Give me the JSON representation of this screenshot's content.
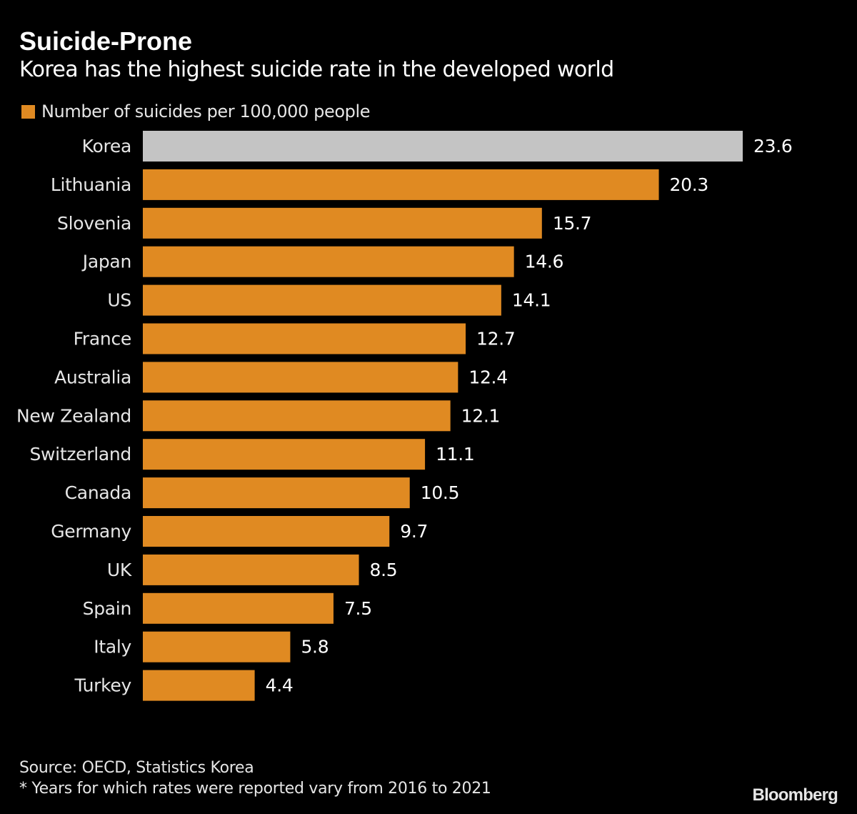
{
  "chart_data": {
    "type": "bar",
    "orientation": "horizontal",
    "title": "Suicide-Prone",
    "subtitle": "Korea has the highest suicide rate in the developed world",
    "legend": "Number of suicides per 100,000 people",
    "legend_position": "top-left",
    "categories": [
      "Korea",
      "Lithuania",
      "Slovenia",
      "Japan",
      "US",
      "France",
      "Australia",
      "New Zealand",
      "Switzerland",
      "Canada",
      "Germany",
      "UK",
      "Spain",
      "Italy",
      "Turkey"
    ],
    "values": [
      23.6,
      20.3,
      15.7,
      14.6,
      14.1,
      12.7,
      12.4,
      12.1,
      11.1,
      10.5,
      9.7,
      8.5,
      7.5,
      5.8,
      4.4
    ],
    "value_labels": [
      "23.6",
      "20.3",
      "15.7",
      "14.6",
      "14.1",
      "12.7",
      "12.4",
      "12.1",
      "11.1",
      "10.5",
      "9.7",
      "8.5",
      "7.5",
      "5.8",
      "4.4"
    ],
    "highlight_category": "Korea",
    "xlim": [
      0,
      23.6
    ],
    "grid": false,
    "xlabel": "",
    "ylabel": ""
  },
  "footer": {
    "source": "Source: OECD, Statistics Korea",
    "note": "* Years for which rates were reported vary from 2016 to 2021",
    "brand": "Bloomberg"
  },
  "colors": {
    "background": "#000000",
    "bar": "#e08a22",
    "highlight_bar": "#c4c4c4",
    "text": "#ffffff",
    "label_text": "#e6e6e6"
  }
}
